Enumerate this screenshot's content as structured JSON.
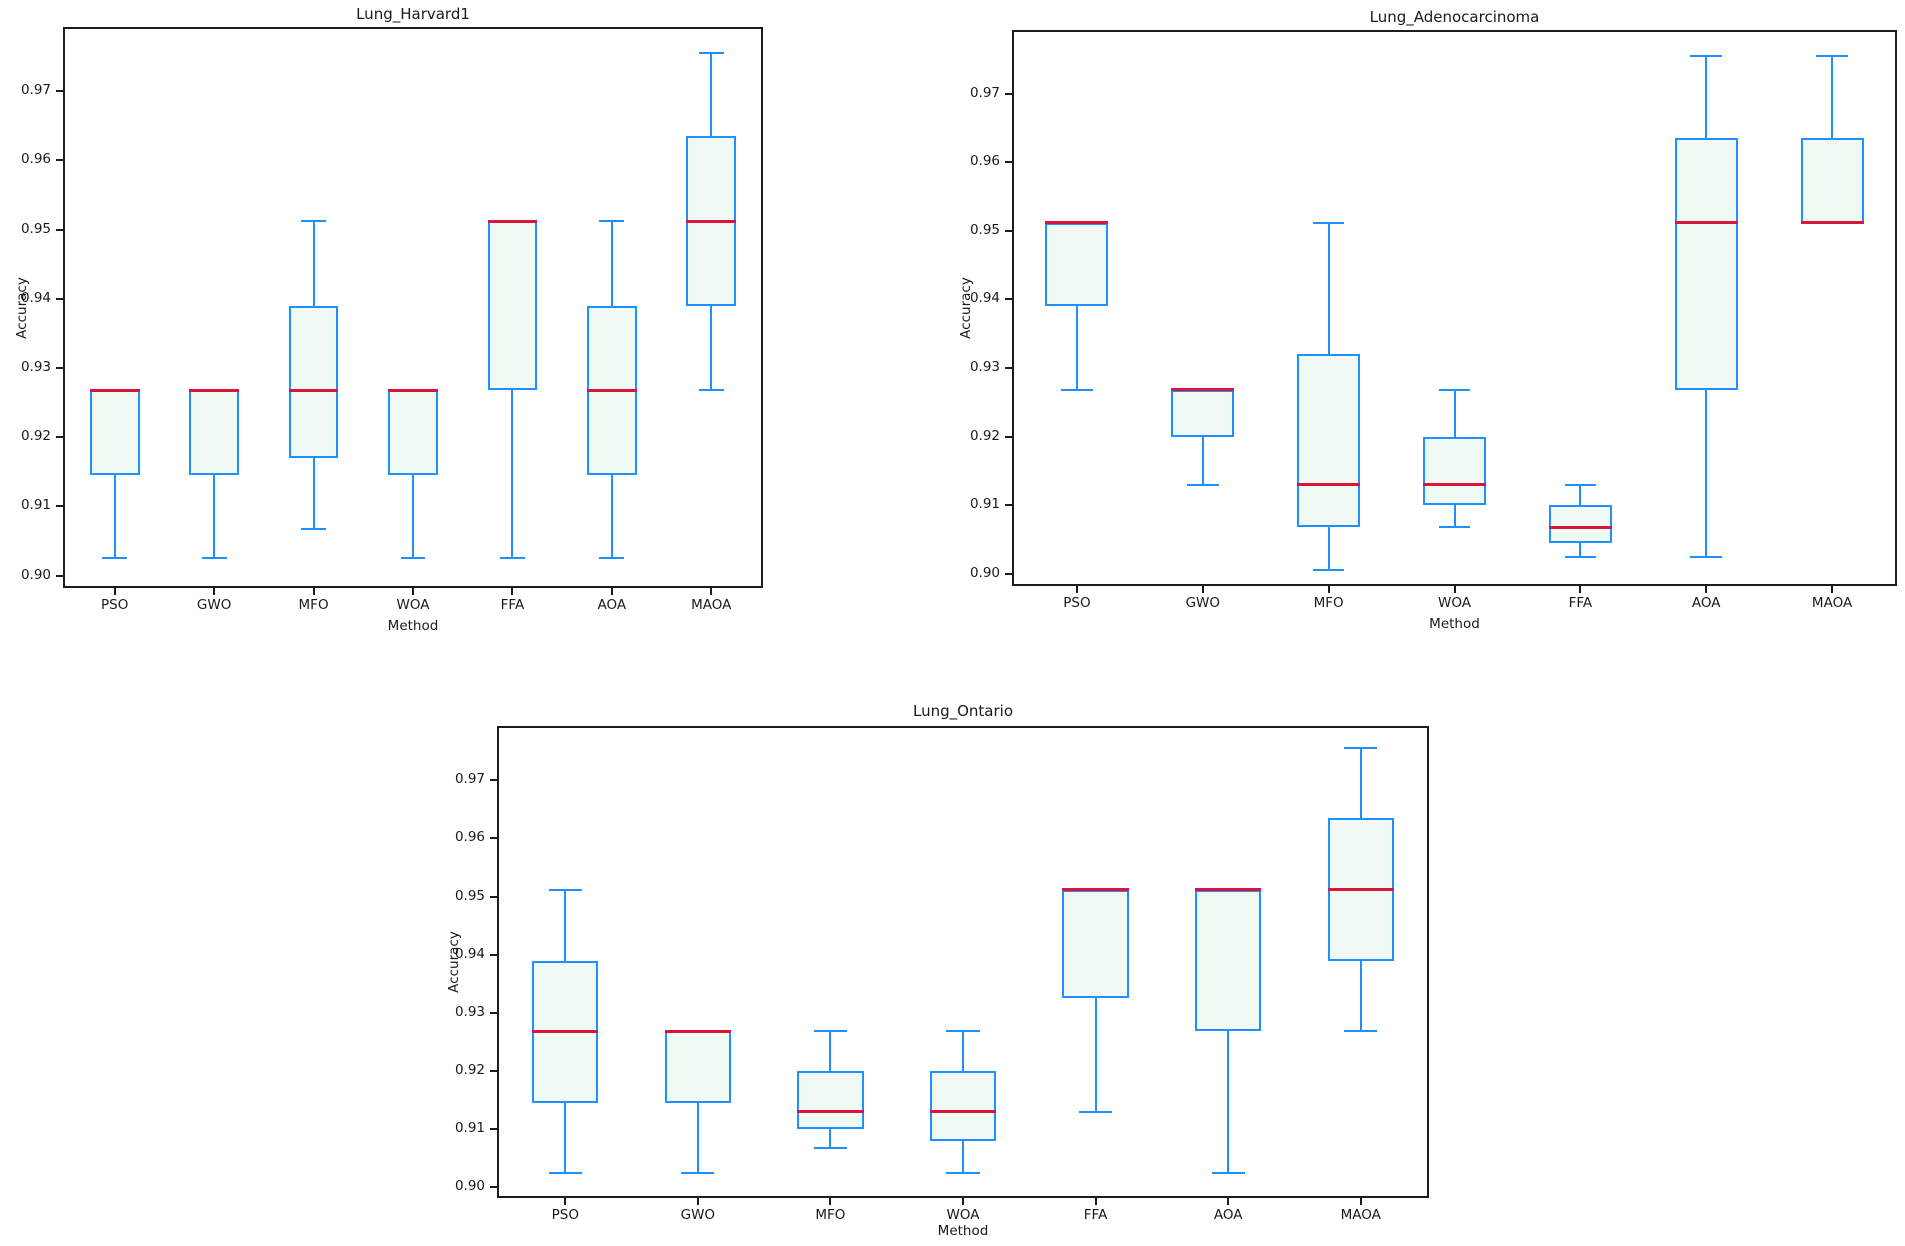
{
  "colors": {
    "box_edge": "#1e90ff",
    "box_fill": "#f0faf4",
    "median": "#dc143c",
    "spine": "#1c1c1c",
    "text": "#1a1a1a"
  },
  "chart_data": [
    {
      "type": "boxplot",
      "title": "Lung_Harvard1",
      "xlabel": "Method",
      "ylabel": "Accuracy",
      "categories": [
        "PSO",
        "GWO",
        "MFO",
        "WOA",
        "FFA",
        "AOA",
        "MAOA"
      ],
      "yticks": [
        "0.90",
        "0.91",
        "0.92",
        "0.93",
        "0.94",
        "0.95",
        "0.96",
        "0.97"
      ],
      "ylim": [
        0.8985,
        0.979
      ],
      "grid": false,
      "legend": "none",
      "series": [
        {
          "method": "PSO",
          "min": 0.9025,
          "q1": 0.9145,
          "median": 0.9268,
          "q3": 0.9268,
          "max": 0.9268
        },
        {
          "method": "GWO",
          "min": 0.9025,
          "q1": 0.9145,
          "median": 0.9268,
          "q3": 0.9268,
          "max": 0.9268
        },
        {
          "method": "MFO",
          "min": 0.9068,
          "q1": 0.917,
          "median": 0.9268,
          "q3": 0.939,
          "max": 0.9512
        },
        {
          "method": "WOA",
          "min": 0.9025,
          "q1": 0.9145,
          "median": 0.9268,
          "q3": 0.9268,
          "max": 0.9268
        },
        {
          "method": "FFA",
          "min": 0.9025,
          "q1": 0.9268,
          "median": 0.9512,
          "q3": 0.9512,
          "max": 0.9512
        },
        {
          "method": "AOA",
          "min": 0.9025,
          "q1": 0.9145,
          "median": 0.9268,
          "q3": 0.939,
          "max": 0.9512
        },
        {
          "method": "MAOA",
          "min": 0.9268,
          "q1": 0.939,
          "median": 0.9512,
          "q3": 0.9635,
          "max": 0.9755
        }
      ]
    },
    {
      "type": "boxplot",
      "title": "Lung_Adenocarcinoma",
      "xlabel": "Method",
      "ylabel": "Accuracy",
      "categories": [
        "PSO",
        "GWO",
        "MFO",
        "WOA",
        "FFA",
        "AOA",
        "MAOA"
      ],
      "yticks": [
        "0.90",
        "0.91",
        "0.92",
        "0.93",
        "0.94",
        "0.95",
        "0.96",
        "0.97"
      ],
      "ylim": [
        0.8985,
        0.979
      ],
      "grid": false,
      "legend": "none",
      "series": [
        {
          "method": "PSO",
          "min": 0.9268,
          "q1": 0.939,
          "median": 0.9512,
          "q3": 0.9512,
          "max": 0.9512
        },
        {
          "method": "GWO",
          "min": 0.913,
          "q1": 0.92,
          "median": 0.9268,
          "q3": 0.9268,
          "max": 0.9268
        },
        {
          "method": "MFO",
          "min": 0.9005,
          "q1": 0.9068,
          "median": 0.913,
          "q3": 0.932,
          "max": 0.9512
        },
        {
          "method": "WOA",
          "min": 0.9068,
          "q1": 0.91,
          "median": 0.913,
          "q3": 0.92,
          "max": 0.9268
        },
        {
          "method": "FFA",
          "min": 0.9025,
          "q1": 0.9045,
          "median": 0.9068,
          "q3": 0.91,
          "max": 0.913
        },
        {
          "method": "AOA",
          "min": 0.9025,
          "q1": 0.9268,
          "median": 0.9512,
          "q3": 0.9635,
          "max": 0.9755
        },
        {
          "method": "MAOA",
          "min": 0.9512,
          "q1": 0.9512,
          "median": 0.9512,
          "q3": 0.9635,
          "max": 0.9755
        }
      ]
    },
    {
      "type": "boxplot",
      "title": "Lung_Ontario",
      "xlabel": "Method",
      "ylabel": "Accuracy",
      "categories": [
        "PSO",
        "GWO",
        "MFO",
        "WOA",
        "FFA",
        "AOA",
        "MAOA"
      ],
      "yticks": [
        "0.90",
        "0.91",
        "0.92",
        "0.93",
        "0.94",
        "0.95",
        "0.96",
        "0.97"
      ],
      "ylim": [
        0.8985,
        0.979
      ],
      "grid": false,
      "legend": "none",
      "series": [
        {
          "method": "PSO",
          "min": 0.9025,
          "q1": 0.9145,
          "median": 0.9268,
          "q3": 0.939,
          "max": 0.9512
        },
        {
          "method": "GWO",
          "min": 0.9025,
          "q1": 0.9145,
          "median": 0.9268,
          "q3": 0.9268,
          "max": 0.9268
        },
        {
          "method": "MFO",
          "min": 0.9068,
          "q1": 0.91,
          "median": 0.913,
          "q3": 0.92,
          "max": 0.9268
        },
        {
          "method": "WOA",
          "min": 0.9025,
          "q1": 0.908,
          "median": 0.913,
          "q3": 0.92,
          "max": 0.9268
        },
        {
          "method": "FFA",
          "min": 0.913,
          "q1": 0.9325,
          "median": 0.9512,
          "q3": 0.9512,
          "max": 0.9512
        },
        {
          "method": "AOA",
          "min": 0.9025,
          "q1": 0.9268,
          "median": 0.9512,
          "q3": 0.9512,
          "max": 0.9512
        },
        {
          "method": "MAOA",
          "min": 0.9268,
          "q1": 0.939,
          "median": 0.9512,
          "q3": 0.9635,
          "max": 0.9755
        }
      ]
    }
  ]
}
